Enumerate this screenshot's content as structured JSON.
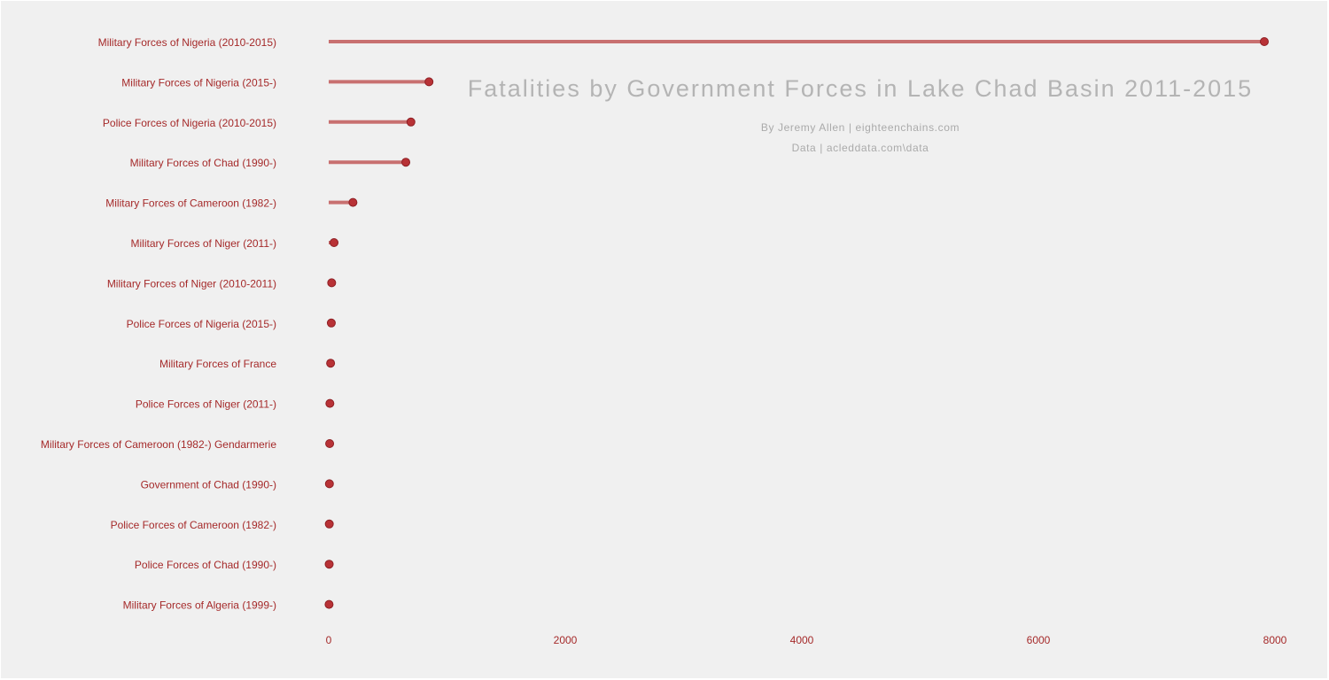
{
  "chart_data": {
    "type": "lollipop",
    "title": "Fatalities by Government Forces in Lake Chad Basin 2011-2015",
    "subtitle_lines": [
      "By Jeremy Allen | eighteenchains.com",
      "Data | acleddata.com\\data"
    ],
    "categories": [
      "Military Forces of Nigeria (2010-2015)",
      "Military Forces of Nigeria (2015-)",
      "Police Forces of Nigeria (2010-2015)",
      "Military Forces of Chad (1990-)",
      "Military Forces of Cameroon (1982-)",
      "Military Forces of Niger (2011-)",
      "Military Forces of Niger (2010-2011)",
      "Police Forces of Nigeria (2015-)",
      "Military Forces of France",
      "Police Forces of Niger (2011-)",
      "Military Forces of Cameroon (1982-) Gendarmerie",
      "Government of Chad (1990-)",
      "Police Forces of Cameroon (1982-)",
      "Police Forces of Chad (1990-)",
      "Military Forces of Algeria (1999-)"
    ],
    "values": [
      7910,
      848,
      695,
      652,
      205,
      45,
      25,
      22,
      16,
      10,
      8,
      6,
      5,
      4,
      3
    ],
    "xlim": [
      0,
      8000
    ],
    "xticks": [
      "0",
      "2000",
      "4000",
      "6000",
      "8000"
    ],
    "xtick_values": [
      0,
      2000,
      4000,
      6000,
      8000
    ],
    "grid": false,
    "colors": {
      "background": "#f0f0f0",
      "stem": "#c87070",
      "dot": "#b83236",
      "dot_outline": "#8e1f24",
      "label": "#a52a2a",
      "title": "#b4b4b4",
      "subtitle": "#aaaaaa"
    }
  }
}
